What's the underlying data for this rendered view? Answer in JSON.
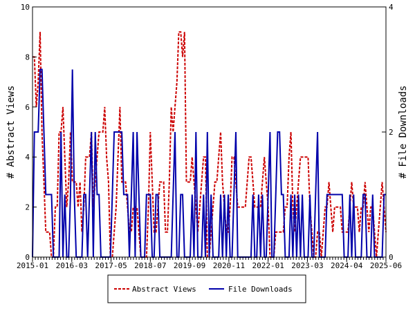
{
  "chart_data": {
    "type": "line",
    "title": "",
    "xlabel": "",
    "ylabel": "# Abstract Views",
    "y2label": "# File Downloads",
    "x_tick_labels": [
      "2015-01",
      "2016-03",
      "2017-05",
      "2018-07",
      "2019-09",
      "2020-11",
      "2022-01",
      "2023-03",
      "2024-04",
      "2025-06"
    ],
    "x_range_months": 126,
    "ylim": [
      0,
      10
    ],
    "y_ticks": [
      0,
      2,
      4,
      6,
      8,
      10
    ],
    "y2lim": [
      0,
      4
    ],
    "y2_ticks": [
      0,
      2,
      4
    ],
    "legend_position": "bottom-center",
    "grid": false,
    "series": [
      {
        "name": "Abstract Views",
        "axis": "left",
        "color": "#cc0000",
        "style": "dashed",
        "values": [
          8,
          8,
          6,
          7,
          9,
          5,
          3,
          1,
          1,
          1,
          0,
          0,
          2,
          2,
          5,
          5,
          6,
          4,
          2,
          3,
          5,
          3,
          3,
          3,
          2,
          3,
          1,
          2,
          4,
          4,
          4,
          5,
          2,
          3,
          4,
          5,
          5,
          5,
          6,
          4,
          3,
          0,
          0,
          1,
          2,
          4,
          6,
          3,
          3,
          3,
          2,
          1,
          1,
          2,
          2,
          2,
          1,
          0,
          0,
          0,
          0,
          2,
          5,
          3,
          1,
          1,
          2,
          3,
          3,
          3,
          1,
          1,
          3,
          6,
          5,
          6,
          7,
          9,
          9,
          8,
          9,
          3,
          3,
          3,
          4,
          3,
          2,
          1,
          2,
          3,
          4,
          4,
          0,
          0,
          1,
          2,
          3,
          3,
          4,
          5,
          3,
          2,
          1,
          1,
          2,
          4,
          4,
          3,
          2,
          2,
          2,
          2,
          2,
          3,
          4,
          4,
          3,
          2,
          2,
          2,
          2,
          3,
          4,
          3,
          2,
          0,
          0,
          0,
          1,
          1,
          1,
          1,
          1,
          2,
          2,
          4,
          5,
          2,
          1,
          2,
          3,
          4,
          4,
          4,
          4,
          4,
          2,
          1,
          0,
          0,
          1,
          1,
          0,
          1,
          2,
          2,
          3,
          2,
          1,
          2,
          2,
          2,
          2,
          1,
          1,
          1,
          1,
          2,
          3,
          2,
          2,
          2,
          1,
          2,
          2,
          3,
          2,
          1,
          2,
          2,
          1,
          0,
          1,
          2,
          3,
          2,
          1
        ]
      },
      {
        "name": "File Downloads",
        "axis": "right",
        "color": "#0000aa",
        "style": "solid",
        "values": [
          0,
          2,
          2,
          2,
          3,
          3,
          2,
          1,
          1,
          1,
          1,
          0,
          0,
          0,
          0,
          2,
          0,
          1,
          0,
          0,
          1,
          3,
          1,
          0,
          0,
          0,
          0,
          1,
          1,
          0,
          1,
          2,
          0,
          2,
          1,
          1,
          0,
          0,
          0,
          0,
          0,
          0,
          1,
          2,
          2,
          2,
          2,
          2,
          1,
          1,
          1,
          0,
          1,
          2,
          0,
          2,
          1,
          0,
          0,
          0,
          1,
          1,
          1,
          0,
          0,
          1,
          1,
          0,
          0,
          0,
          0,
          0,
          0,
          0,
          1,
          2,
          0,
          0,
          1,
          1,
          0,
          0,
          0,
          0,
          1,
          0,
          2,
          0,
          0,
          0,
          1,
          0,
          2,
          0,
          1,
          0,
          0,
          0,
          0,
          1,
          0,
          1,
          0,
          1,
          0,
          0,
          1,
          2,
          0,
          0,
          0,
          0,
          0,
          0,
          0,
          0,
          1,
          0,
          0,
          1,
          0,
          1,
          0,
          0,
          1,
          2,
          0,
          0,
          1,
          2,
          2,
          1,
          1,
          0,
          0,
          0,
          1,
          0,
          1,
          0,
          1,
          0,
          1,
          0,
          0,
          0,
          1,
          0,
          0,
          1,
          2,
          0,
          0,
          0,
          0,
          1,
          1,
          1,
          1,
          1,
          1,
          1,
          1,
          1,
          0,
          0,
          0,
          1,
          0,
          1,
          0,
          0,
          0,
          0,
          1,
          1,
          0,
          0,
          0,
          1,
          0,
          0,
          0,
          0,
          0,
          1,
          1
        ]
      }
    ]
  }
}
